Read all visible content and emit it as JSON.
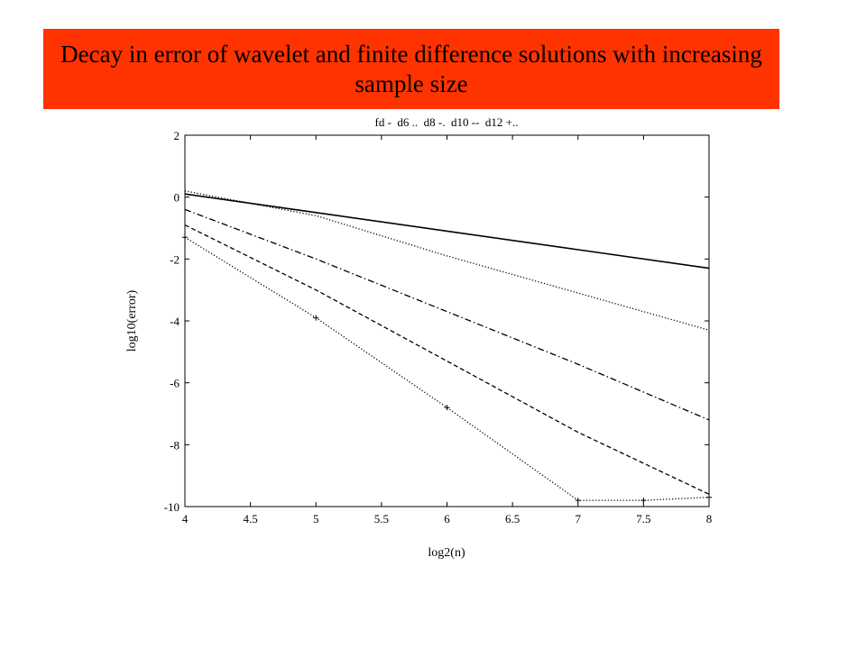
{
  "slide": {
    "title": "Decay in error of wavelet and finite difference solutions with increasing sample size",
    "banner_color": "#ff3300"
  },
  "chart_data": {
    "type": "line",
    "title": "fd -  d6 ..  d8 -.  d10 --  d12 +..",
    "xlabel": "log2(n)",
    "ylabel": "log10(error)",
    "xlim": [
      4,
      8
    ],
    "ylim": [
      -10,
      2
    ],
    "xticks": [
      4,
      4.5,
      5,
      5.5,
      6,
      6.5,
      7,
      7.5,
      8
    ],
    "xtick_labels": [
      "4",
      "4.5",
      "5",
      "5.5",
      "6",
      "6.5",
      "7",
      "7.5",
      "8"
    ],
    "yticks": [
      -10,
      -8,
      -6,
      -4,
      -2,
      0,
      2
    ],
    "ytick_labels": [
      "-10",
      "-8",
      "-6",
      "-4",
      "-2",
      "0",
      "2"
    ],
    "grid": false,
    "legend": "title",
    "series": [
      {
        "name": "fd",
        "style": "solid",
        "x": [
          4,
          5,
          6,
          7,
          8
        ],
        "y": [
          0.1,
          -0.5,
          -1.1,
          -1.7,
          -2.3
        ]
      },
      {
        "name": "d6",
        "style": "dotted",
        "x": [
          4,
          5,
          6,
          7,
          8
        ],
        "y": [
          0.2,
          -0.6,
          -1.9,
          -3.1,
          -4.3
        ]
      },
      {
        "name": "d8",
        "style": "dashdot",
        "x": [
          4,
          5,
          6,
          7,
          8
        ],
        "y": [
          -0.4,
          -2.0,
          -3.7,
          -5.4,
          -7.2
        ]
      },
      {
        "name": "d10",
        "style": "dashed",
        "x": [
          4,
          5,
          6,
          7,
          8
        ],
        "y": [
          -0.9,
          -3.0,
          -5.3,
          -7.6,
          -9.6
        ]
      },
      {
        "name": "d12",
        "style": "dotted-plus",
        "x": [
          4,
          5,
          6,
          7,
          7.5,
          8
        ],
        "y": [
          -1.3,
          -3.9,
          -6.8,
          -9.8,
          -9.8,
          -9.7
        ]
      }
    ]
  }
}
